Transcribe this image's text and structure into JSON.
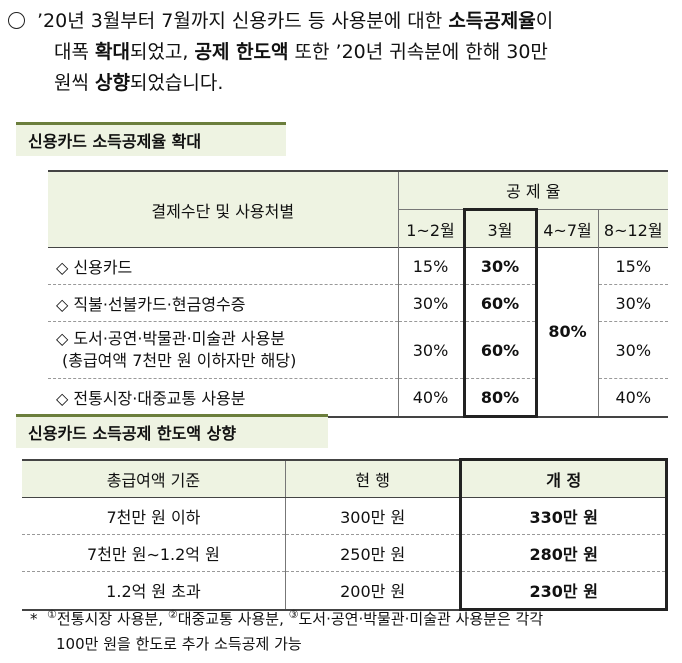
{
  "intro": {
    "l1_a": "’20년 3월부터 7월까지 신용카드 등 사용분에 대한 ",
    "l1_b": "소득공제율",
    "l1_c": "이",
    "l2_a": "대폭 ",
    "l2_b": "확대",
    "l2_c": "되었고, ",
    "l2_d": "공제 한도액",
    "l2_e": " 또한 ’20년   귀속분에 한해 30만",
    "l3_a": "원씩 ",
    "l3_b": "상향",
    "l3_c": "되었습니다."
  },
  "section1": {
    "title": "신용카드 소득공제율 확대"
  },
  "table1": {
    "col_header": "결제수단 및 사용처별",
    "group_header": "공 제 율",
    "periods": [
      "1~2월",
      "3월",
      "4~7월",
      "8~12월"
    ],
    "rows": [
      {
        "label": "◇  신용카드",
        "sub": "",
        "p1": "15%",
        "p2": "30%",
        "p4": "15%"
      },
      {
        "label": "◇  직불·선불카드·현금영수증",
        "sub": "",
        "p1": "30%",
        "p2": "60%",
        "p4": "30%"
      },
      {
        "label": "◇  도서·공연·박물관·미술관 사용분",
        "sub": "(총급여액 7천만 원 이하자만 해당)",
        "p1": "30%",
        "p2": "60%",
        "p4": "30%"
      },
      {
        "label": "◇  전통시장·대중교통 사용분",
        "sub": "",
        "p1": "40%",
        "p2": "80%",
        "p4": "40%"
      }
    ],
    "merged_p3": "80%"
  },
  "section2": {
    "title": "신용카드 소득공제 한도액 상향"
  },
  "table2": {
    "headers": [
      "총급여액 기준",
      "현  행",
      "개  정"
    ],
    "rows": [
      [
        "7천만 원 이하",
        "300만 원",
        "330만 원"
      ],
      [
        "7천만 원∼1.2억 원",
        "250만 원",
        "280만 원"
      ],
      [
        "1.2억 원 초과",
        "200만 원",
        "230만 원"
      ]
    ]
  },
  "note": {
    "star": "*",
    "m1": "①",
    "t1": "전통시장 사용분, ",
    "m2": "②",
    "t2": "대중교통 사용분, ",
    "m3": "③",
    "t3": "도서·공연·박물관·미술관 사용분은 각각",
    "line2": "100만 원을 한도로 추가 소득공제 가능"
  }
}
